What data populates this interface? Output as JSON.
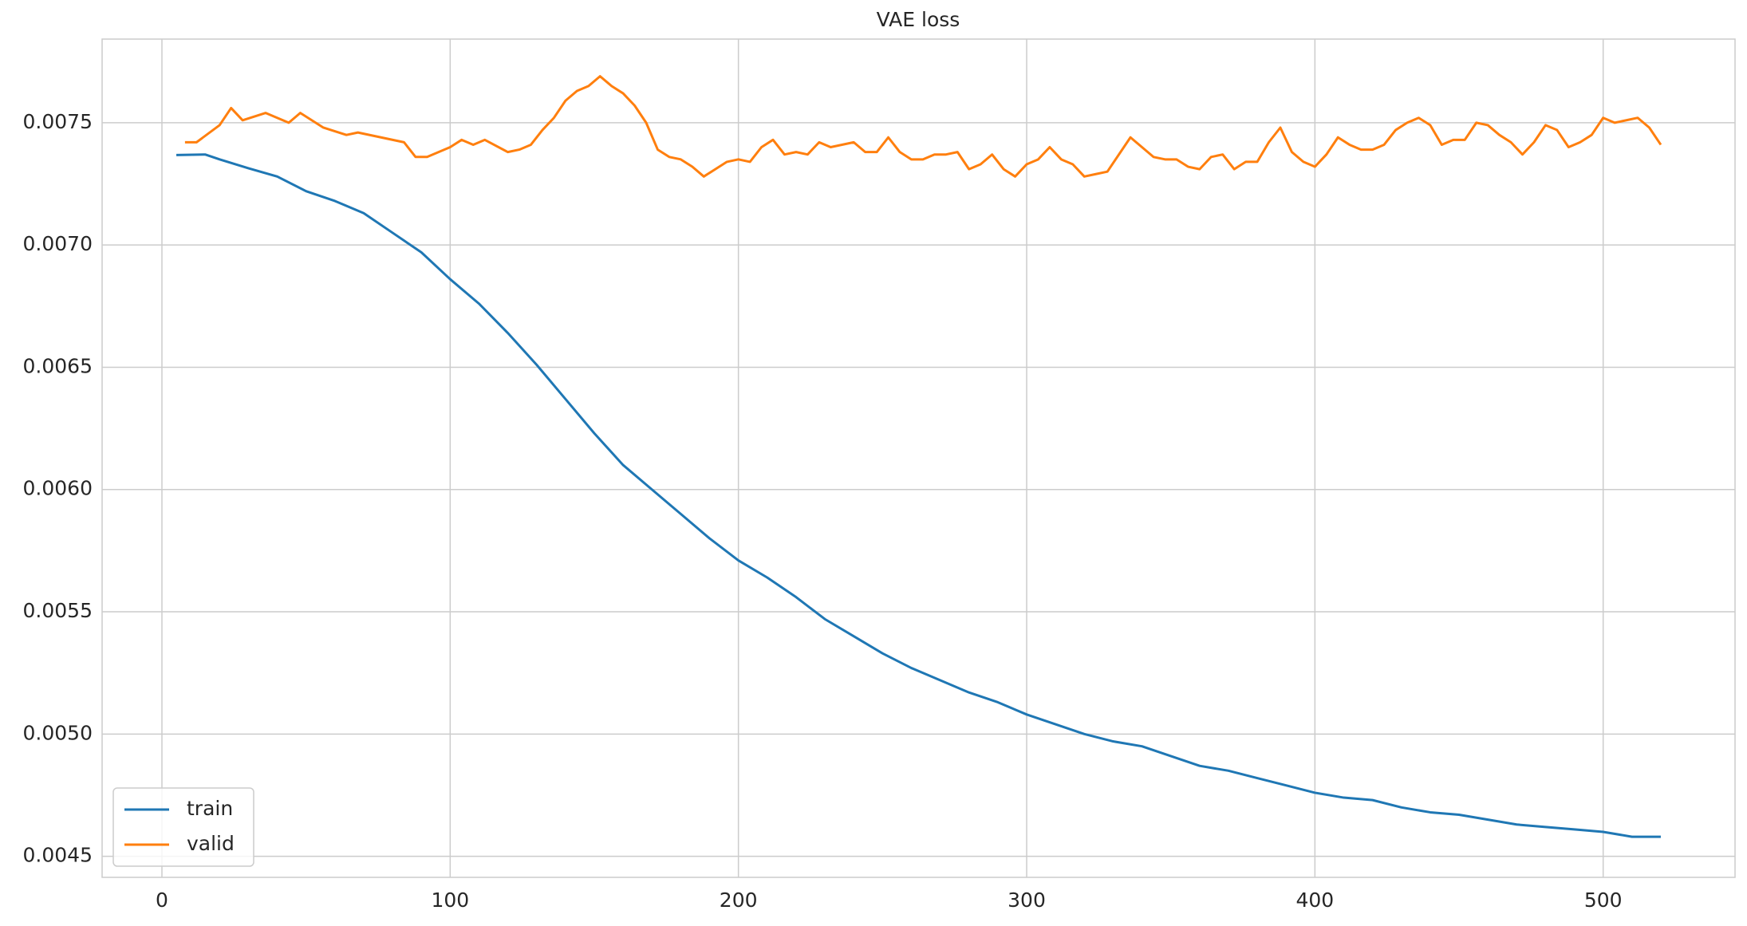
{
  "chart_data": {
    "type": "line",
    "title": "VAE loss",
    "xlim": [
      -20.75,
      545.75
    ],
    "xticks": [
      0,
      100,
      200,
      300,
      400,
      500
    ],
    "ylim": [
      0.004414,
      0.007842
    ],
    "yticks": [
      0.0045,
      {
        "value": 0.005,
        "label": "0.0050"
      },
      0.0055,
      {
        "value": 0.006,
        "label": "0.0060"
      },
      0.0065,
      {
        "value": 0.007,
        "label": "0.0070"
      },
      0.0075
    ],
    "grid": true,
    "legend": "lower left",
    "series": [
      {
        "name": "train",
        "color": "#1f77b4",
        "x": [
          5,
          15,
          20,
          30,
          40,
          50,
          60,
          70,
          80,
          90,
          100,
          110,
          120,
          130,
          140,
          150,
          160,
          170,
          180,
          190,
          200,
          210,
          220,
          230,
          240,
          250,
          260,
          270,
          280,
          290,
          300,
          310,
          320,
          330,
          340,
          350,
          360,
          370,
          380,
          390,
          400,
          410,
          420,
          430,
          440,
          450,
          460,
          470,
          480,
          490,
          500,
          510,
          520
        ],
        "values": [
          0.007368,
          0.00737,
          0.00735,
          0.007314,
          0.00728,
          0.00722,
          0.00718,
          0.00713,
          0.00705,
          0.00697,
          0.00686,
          0.00676,
          0.00664,
          0.00651,
          0.00637,
          0.00623,
          0.0061,
          0.006,
          0.0059,
          0.0058,
          0.00571,
          0.00564,
          0.00556,
          0.00547,
          0.0054,
          0.00533,
          0.00527,
          0.00522,
          0.00517,
          0.00513,
          0.00508,
          0.00504,
          0.005,
          0.00497,
          0.00495,
          0.00491,
          0.00487,
          0.00485,
          0.00482,
          0.00479,
          0.00476,
          0.00474,
          0.00473,
          0.0047,
          0.00468,
          0.00467,
          0.00465,
          0.00463,
          0.00462,
          0.00461,
          0.0046,
          0.00458,
          0.00458
        ]
      },
      {
        "name": "valid",
        "color": "#ff7f0e",
        "x": [
          8,
          12,
          20,
          24,
          28,
          36,
          44,
          48,
          56,
          64,
          68,
          76,
          84,
          88,
          92,
          100,
          104,
          108,
          112,
          120,
          124,
          128,
          132,
          136,
          140,
          144,
          148,
          152,
          156,
          160,
          164,
          168,
          172,
          176,
          180,
          184,
          188,
          192,
          196,
          200,
          204,
          208,
          212,
          216,
          220,
          224,
          228,
          232,
          240,
          244,
          248,
          252,
          256,
          260,
          264,
          268,
          272,
          276,
          280,
          284,
          288,
          292,
          296,
          300,
          304,
          308,
          312,
          316,
          320,
          324,
          328,
          336,
          344,
          348,
          352,
          356,
          360,
          364,
          368,
          372,
          376,
          380,
          384,
          388,
          392,
          396,
          400,
          404,
          408,
          412,
          416,
          420,
          424,
          428,
          432,
          436,
          440,
          444,
          448,
          452,
          456,
          460,
          464,
          468,
          472,
          476,
          480,
          484,
          488,
          492,
          496,
          500,
          504,
          512,
          516,
          520
        ],
        "values": [
          0.00742,
          0.00742,
          0.00749,
          0.00756,
          0.00751,
          0.00754,
          0.0075,
          0.00754,
          0.00748,
          0.00745,
          0.00746,
          0.00744,
          0.00742,
          0.00736,
          0.00736,
          0.0074,
          0.00743,
          0.00741,
          0.00743,
          0.00738,
          0.00739,
          0.00741,
          0.00747,
          0.00752,
          0.00759,
          0.00763,
          0.00765,
          0.00769,
          0.00765,
          0.00762,
          0.00757,
          0.0075,
          0.00739,
          0.00736,
          0.00735,
          0.00732,
          0.00728,
          0.00731,
          0.00734,
          0.00735,
          0.00734,
          0.0074,
          0.00743,
          0.00737,
          0.00738,
          0.00737,
          0.00742,
          0.0074,
          0.00742,
          0.00738,
          0.00738,
          0.00744,
          0.00738,
          0.00735,
          0.00735,
          0.00737,
          0.00737,
          0.00738,
          0.00731,
          0.00733,
          0.00737,
          0.00731,
          0.00728,
          0.00733,
          0.00735,
          0.0074,
          0.00735,
          0.00733,
          0.00728,
          0.00729,
          0.0073,
          0.00744,
          0.00736,
          0.00735,
          0.00735,
          0.00732,
          0.00731,
          0.00736,
          0.00737,
          0.00731,
          0.00734,
          0.00734,
          0.00742,
          0.00748,
          0.00738,
          0.00734,
          0.00732,
          0.00737,
          0.00744,
          0.00741,
          0.00739,
          0.00739,
          0.00741,
          0.00747,
          0.0075,
          0.00752,
          0.00749,
          0.00741,
          0.00743,
          0.00743,
          0.0075,
          0.00749,
          0.00745,
          0.00742,
          0.00737,
          0.00742,
          0.00749,
          0.00747,
          0.0074,
          0.00742,
          0.00745,
          0.00752,
          0.0075,
          0.00752,
          0.00748,
          0.00741
        ]
      }
    ]
  }
}
